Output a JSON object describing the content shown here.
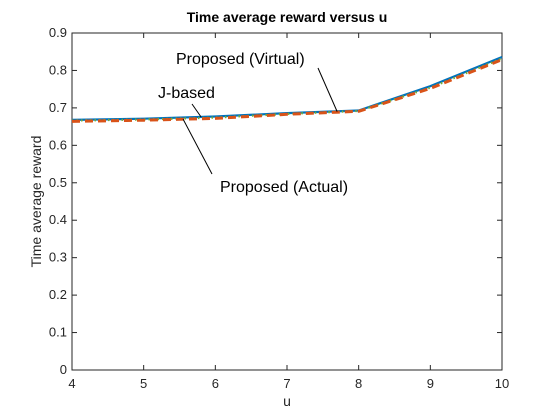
{
  "chart_data": {
    "type": "line",
    "title": "Time average reward versus u",
    "xlabel": "u",
    "ylabel": "Time average reward",
    "xlim": [
      4,
      10
    ],
    "ylim": [
      0,
      0.9
    ],
    "x_ticks": [
      4,
      5,
      6,
      7,
      8,
      9,
      10
    ],
    "y_ticks": [
      0,
      0.1,
      0.2,
      0.3,
      0.4,
      0.5,
      0.6,
      0.7,
      0.8,
      0.9
    ],
    "x_tick_labels": [
      "4",
      "5",
      "6",
      "7",
      "8",
      "9",
      "10"
    ],
    "y_tick_labels": [
      "0",
      "0.1",
      "0.2",
      "0.3",
      "0.4",
      "0.5",
      "0.6",
      "0.7",
      "0.8",
      "0.9"
    ],
    "grid": false,
    "series": [
      {
        "name": "J-based",
        "color": "#0072BD",
        "style": "solid",
        "x": [
          4,
          5,
          6,
          7,
          8,
          9,
          10
        ],
        "values": [
          0.668,
          0.671,
          0.677,
          0.686,
          0.693,
          0.758,
          0.836
        ]
      },
      {
        "name": "Proposed (Virtual)",
        "color": "#77AC30",
        "style": "dotted",
        "x": [
          4,
          5,
          6,
          7,
          8,
          9,
          10
        ],
        "values": [
          0.666,
          0.669,
          0.674,
          0.684,
          0.692,
          0.754,
          0.832
        ]
      },
      {
        "name": "Proposed (Actual)",
        "color": "#D95319",
        "style": "dashed",
        "x": [
          4,
          5,
          6,
          7,
          8,
          9,
          10
        ],
        "values": [
          0.664,
          0.667,
          0.672,
          0.683,
          0.691,
          0.752,
          0.829
        ]
      }
    ],
    "annotations": [
      {
        "text": "Proposed (Virtual)",
        "target_x": 7.7,
        "target_y": 0.69
      },
      {
        "text": "J-based",
        "target_x": 5.8,
        "target_y": 0.676
      },
      {
        "text": "Proposed (Actual)",
        "target_x": 5.55,
        "target_y": 0.67
      }
    ]
  }
}
